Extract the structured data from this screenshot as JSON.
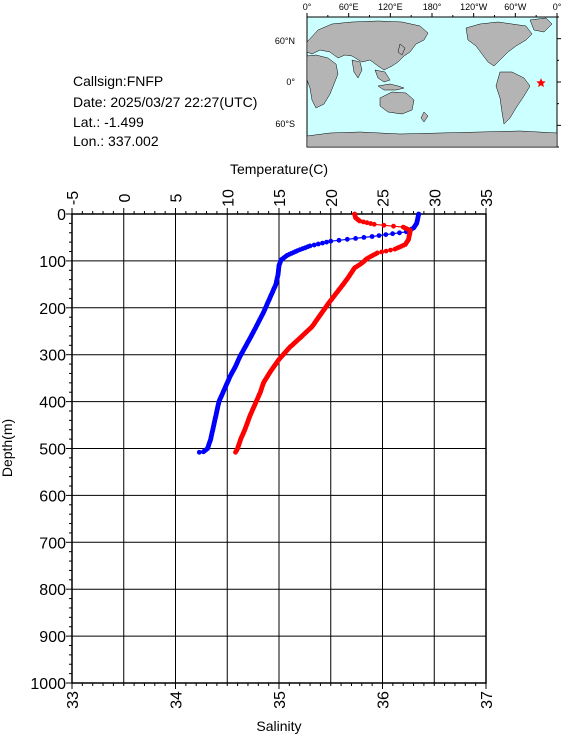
{
  "info": {
    "callsign": "Callsign:FNFP",
    "date": "Date:  2025/03/27 22:27(UTC)",
    "lat": "Lat.:   -1.499",
    "lon": "Lon.:  337.002"
  },
  "map": {
    "top_ticks": [
      "0°",
      "60°E",
      "120°E",
      "180°",
      "120°W",
      "60°W",
      "0°"
    ],
    "right_ticks": [
      "60°N",
      "0°",
      "60°S"
    ],
    "ocean_color": "#ccffff",
    "land_color": "#b4b4b4",
    "station": {
      "lat": -1.499,
      "lon": 337.002,
      "color": "#ff0000",
      "marker": "star"
    }
  },
  "chart_data": {
    "type": "line",
    "top_axis": {
      "label": "Temperature(C)",
      "range": [
        -5,
        35
      ],
      "ticks": [
        "-5",
        "0",
        "5",
        "10",
        "15",
        "20",
        "25",
        "30",
        "35"
      ]
    },
    "bottom_axis": {
      "label": "Salinity",
      "range": [
        33,
        37
      ],
      "ticks": [
        "33",
        "34",
        "35",
        "36",
        "37"
      ]
    },
    "y_axis": {
      "label": "Depth(m)",
      "range": [
        0,
        1000
      ],
      "inverted": true,
      "ticks": [
        "0",
        "100",
        "200",
        "300",
        "400",
        "500",
        "600",
        "700",
        "800",
        "900",
        "1000"
      ]
    },
    "grid": true,
    "series": [
      {
        "axis": "temperature",
        "color": "#0000ff",
        "points": [
          [
            28.5,
            0
          ],
          [
            28.4,
            10
          ],
          [
            28.3,
            20
          ],
          [
            28.0,
            30
          ],
          [
            27.3,
            38
          ],
          [
            24.0,
            48
          ],
          [
            20.0,
            58
          ],
          [
            18.0,
            68
          ],
          [
            16.8,
            78
          ],
          [
            15.8,
            88
          ],
          [
            15.2,
            98
          ],
          [
            15.0,
            110
          ],
          [
            14.9,
            130
          ],
          [
            14.7,
            150
          ],
          [
            14.1,
            180
          ],
          [
            13.5,
            210
          ],
          [
            12.8,
            240
          ],
          [
            12.2,
            265
          ],
          [
            11.7,
            285
          ],
          [
            11.2,
            305
          ],
          [
            10.8,
            325
          ],
          [
            10.3,
            345
          ],
          [
            9.9,
            365
          ],
          [
            9.5,
            385
          ],
          [
            9.2,
            400
          ],
          [
            9.0,
            420
          ],
          [
            8.8,
            440
          ],
          [
            8.6,
            460
          ],
          [
            8.4,
            480
          ],
          [
            8.1,
            500
          ],
          [
            7.7,
            507
          ],
          [
            7.3,
            508
          ]
        ]
      },
      {
        "axis": "salinity",
        "color": "#ff0000",
        "points": [
          [
            35.73,
            0
          ],
          [
            35.74,
            8
          ],
          [
            35.78,
            15
          ],
          [
            35.92,
            22
          ],
          [
            36.2,
            28
          ],
          [
            36.27,
            35
          ],
          [
            36.26,
            45
          ],
          [
            36.25,
            55
          ],
          [
            36.22,
            65
          ],
          [
            36.12,
            75
          ],
          [
            35.95,
            83
          ],
          [
            35.85,
            95
          ],
          [
            35.8,
            105
          ],
          [
            35.73,
            115
          ],
          [
            35.67,
            135
          ],
          [
            35.62,
            150
          ],
          [
            35.55,
            170
          ],
          [
            35.48,
            190
          ],
          [
            35.4,
            215
          ],
          [
            35.32,
            240
          ],
          [
            35.2,
            265
          ],
          [
            35.1,
            285
          ],
          [
            35.0,
            310
          ],
          [
            34.92,
            335
          ],
          [
            34.85,
            360
          ],
          [
            34.82,
            380
          ],
          [
            34.78,
            400
          ],
          [
            34.72,
            430
          ],
          [
            34.67,
            460
          ],
          [
            34.63,
            480
          ],
          [
            34.6,
            500
          ],
          [
            34.58,
            508
          ]
        ]
      }
    ]
  }
}
